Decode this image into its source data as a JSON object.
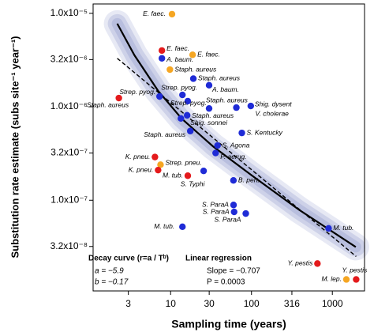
{
  "chart_data": {
    "type": "scatter",
    "xlabel": "Sampling time (years)",
    "ylabel": "Substitution rate estimate (subs site⁻¹ year⁻¹)",
    "xscale": "log",
    "yscale": "log",
    "xlim": [
      1.1,
      2500
    ],
    "ylim": [
      1.07e-08,
      1.26e-05
    ],
    "xticks": [
      3,
      10,
      30,
      100,
      316,
      1000
    ],
    "yticks": [
      {
        "value": 1e-05,
        "label": "1.0x10⁻⁵"
      },
      {
        "value": 3.2e-06,
        "label": "3.2x10⁻⁶"
      },
      {
        "value": 1e-06,
        "label": "1.0x10⁻⁶"
      },
      {
        "value": 3.2e-07,
        "label": "3.2x10⁻⁷"
      },
      {
        "value": 1e-07,
        "label": "1.0x10⁻⁷"
      },
      {
        "value": 3.2e-08,
        "label": "3.2x10⁻⁸"
      }
    ],
    "x": [
      10.4,
      7.8,
      7.8,
      18.7,
      9.8,
      19.1,
      29.9,
      14.0,
      2.29,
      7.3,
      16.3,
      29.9,
      65,
      98,
      16.0,
      13.4,
      17.5,
      76,
      38,
      36,
      6.4,
      7.5,
      7.0,
      16.3,
      25.6,
      59.8,
      60,
      61,
      85,
      14,
      898,
      654,
      1490,
      1970
    ],
    "values": [
      9.8e-06,
      4e-06,
      3.3e-06,
      3.6e-06,
      2.5e-06,
      2e-06,
      1.7e-06,
      1.34e-06,
      1.24e-06,
      1.29e-06,
      1.15e-06,
      9.6e-07,
      9.8e-07,
      1.02e-06,
      8.1e-07,
      7.5e-07,
      5.5e-07,
      5.25e-07,
      3.85e-07,
      3.2e-07,
      2.9e-07,
      2.4e-07,
      2.1e-07,
      1.83e-07,
      2.06e-07,
      1.63e-07,
      8.9e-08,
      7.5e-08,
      7.2e-08,
      5.2e-08,
      5e-08,
      2.1e-08,
      1.42e-08,
      1.42e-08
    ],
    "point_labels": [
      "E. faec.",
      "E. faec.",
      "A. baum.",
      "E. faec.",
      "Staph. aureus",
      "Staph. aureus",
      "A. baum.",
      "Strep. pyog.",
      "Staph. aureus",
      "Strep. pyog.",
      "Strep. pyog.",
      "Staph. aureus",
      "V. cholerae",
      "Shig. dysent",
      "Staph. aureus",
      "Shig. sonnei",
      "Staph. aureus",
      "S. Kentucky",
      "S. Agona",
      "P. aerug.",
      "K. pneu.",
      "Strep. pneu.",
      "K. pneu.",
      "M. tub.",
      "S. Typhi",
      "B. pert.",
      "S. ParaA",
      "S. ParaA",
      "S. ParaA",
      "M. tub.",
      "M. tub.",
      "Y. pestis",
      "M. lep.",
      "Y. pestis"
    ],
    "colors": [
      "#f5a623",
      "#e41a1c",
      "#1f2bd6",
      "#f5a623",
      "#f5a623",
      "#1f2bd6",
      "#1f2bd6",
      "#1f2bd6",
      "#e41a1c",
      "#1f2bd6",
      "#1f2bd6",
      "#1f2bd6",
      "#1f2bd6",
      "#1f2bd6",
      "#1f2bd6",
      "#1f2bd6",
      "#1f2bd6",
      "#1f2bd6",
      "#1f2bd6",
      "#1f2bd6",
      "#e41a1c",
      "#f5a623",
      "#e41a1c",
      "#e41a1c",
      "#1f2bd6",
      "#1f2bd6",
      "#1f2bd6",
      "#1f2bd6",
      "#1f2bd6",
      "#1f2bd6",
      "#1f2bd6",
      "#e41a1c",
      "#f5a623",
      "#e41a1c"
    ],
    "decay_curve": {
      "x": [
        2.19,
        3.57,
        7.0,
        13.7,
        33.4,
        102,
        387,
        1950
      ],
      "values": [
        7.76e-06,
        3.56e-06,
        1.48e-06,
        7.46e-07,
        3.77e-07,
        1.83e-07,
        7.9e-08,
        3.16e-08
      ],
      "color": "#000000",
      "band_color": "#9fa6d2"
    },
    "regression_line": {
      "x": [
        2.19,
        1970
      ],
      "values": [
        3.3e-06,
        2.5e-08
      ],
      "color": "#000000",
      "dashed": true
    },
    "annotations": [
      "Decay curve (r=a / Tᵇ)",
      "a = −5.9",
      "b = −0.17",
      "Linear regression",
      "Slope = −0.707",
      "P = 0.0003"
    ]
  }
}
